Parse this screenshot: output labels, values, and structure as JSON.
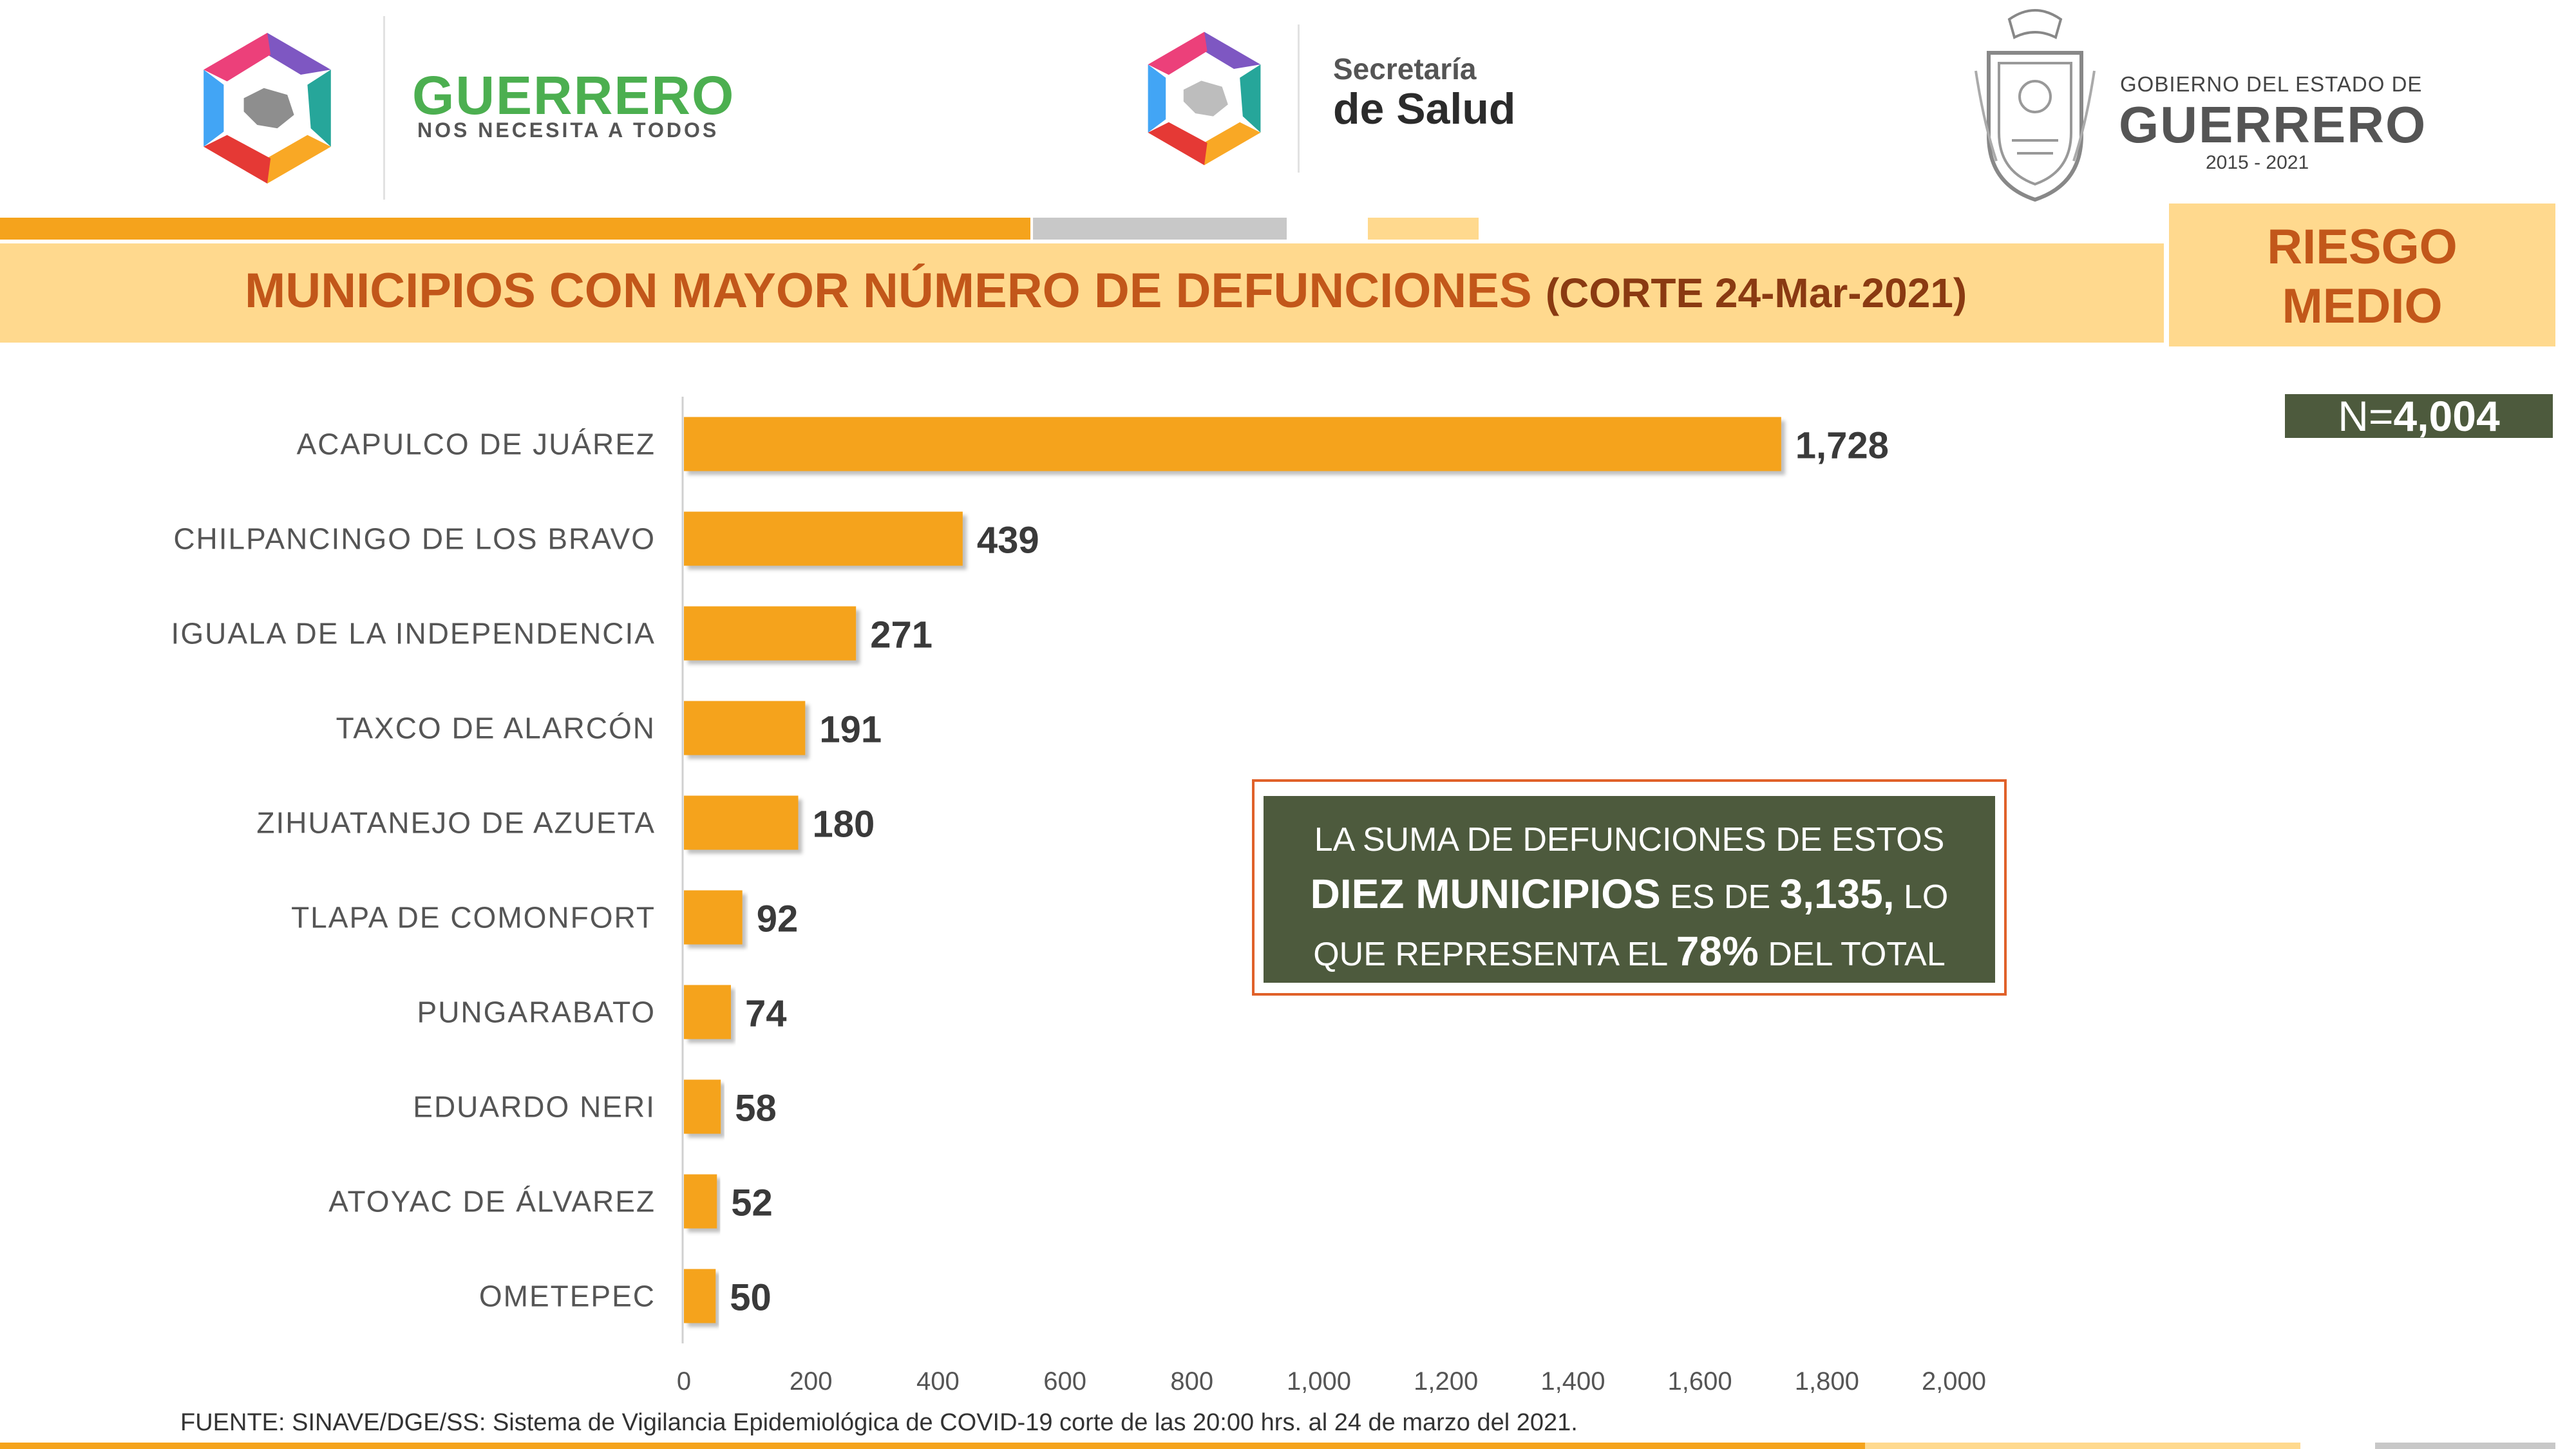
{
  "header": {
    "brand_left": {
      "name": "GUERRERO",
      "tagline": "NOS NECESITA A TODOS"
    },
    "brand_center": {
      "line1": "Secretaría",
      "line2": "de Salud"
    },
    "brand_right": {
      "line1": "GOBIERNO DEL ESTADO DE",
      "line2": "GUERRERO",
      "line3": "2015 - 2021"
    }
  },
  "title": {
    "main": "MUNICIPIOS CON MAYOR NÚMERO  DE  DEFUNCIONES",
    "sub": "(CORTE 24-Mar-2021)"
  },
  "risk": {
    "line1": "RIESGO",
    "line2": "MEDIO"
  },
  "total": {
    "prefix": "N=",
    "value": "4,004"
  },
  "note": {
    "line1": "LA SUMA DE DEFUNCIONES DE ESTOS",
    "line2_bold": "DIEZ MUNICIPIOS",
    "line2_mid": " ES DE ",
    "line2_num": "3,135,",
    "line2_end": " LO",
    "line3_start": "QUE REPRESENTA EL ",
    "line3_pct": "78%",
    "line3_end": " DEL TOTAL"
  },
  "source": "FUENTE: SINAVE/DGE/SS: Sistema de Vigilancia Epidemiológica de COVID-19 corte de las 20:00 hrs. al 24 de marzo del 2021.",
  "colors": {
    "bar": "#f5a31c",
    "accent_orange": "#c2571a",
    "band": "#ffd98e",
    "dark_green": "#4d5a3d",
    "gray": "#c8c8c8"
  },
  "chart_data": {
    "type": "bar",
    "orientation": "horizontal",
    "categories": [
      "ACAPULCO DE JUÁREZ",
      "CHILPANCINGO DE LOS BRAVO",
      "IGUALA DE LA INDEPENDENCIA",
      "TAXCO DE ALARCÓN",
      "ZIHUATANEJO DE AZUETA",
      "TLAPA DE COMONFORT",
      "PUNGARABATO",
      "EDUARDO NERI",
      "ATOYAC DE ÁLVAREZ",
      "OMETEPEC"
    ],
    "values": [
      1728,
      439,
      271,
      191,
      180,
      92,
      74,
      58,
      52,
      50
    ],
    "value_labels": [
      "1,728",
      "439",
      "271",
      "191",
      "180",
      "92",
      "74",
      "58",
      "52",
      "50"
    ],
    "xlim": [
      0,
      2000
    ],
    "xticks": [
      0,
      200,
      400,
      600,
      800,
      1000,
      1200,
      1400,
      1600,
      1800,
      2000
    ],
    "xtick_labels": [
      "0",
      "200",
      "400",
      "600",
      "800",
      "1,000",
      "1,200",
      "1,400",
      "1,600",
      "1,800",
      "2,000"
    ],
    "grid": false
  }
}
